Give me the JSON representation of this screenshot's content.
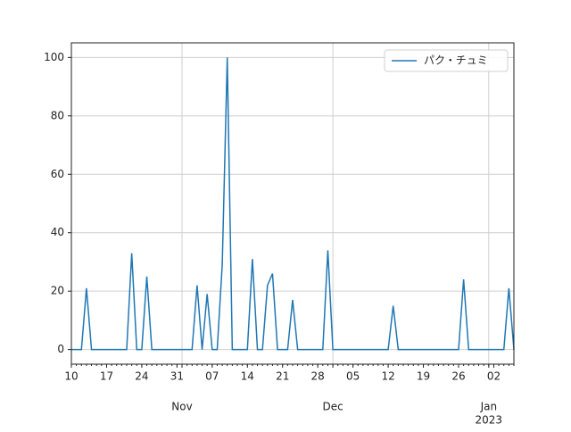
{
  "chart_data": {
    "type": "line",
    "x": [
      "10-10",
      "10-11",
      "10-12",
      "10-13",
      "10-14",
      "10-15",
      "10-16",
      "10-17",
      "10-18",
      "10-19",
      "10-20",
      "10-21",
      "10-22",
      "10-23",
      "10-24",
      "10-25",
      "10-26",
      "10-27",
      "10-28",
      "10-29",
      "10-30",
      "10-31",
      "11-01",
      "11-02",
      "11-03",
      "11-04",
      "11-05",
      "11-06",
      "11-07",
      "11-08",
      "11-09",
      "11-10",
      "11-11",
      "11-12",
      "11-13",
      "11-14",
      "11-15",
      "11-16",
      "11-17",
      "11-18",
      "11-19",
      "11-20",
      "11-21",
      "11-22",
      "11-23",
      "11-24",
      "11-25",
      "11-26",
      "11-27",
      "11-28",
      "11-29",
      "11-30",
      "12-01",
      "12-02",
      "12-03",
      "12-04",
      "12-05",
      "12-06",
      "12-07",
      "12-08",
      "12-09",
      "12-10",
      "12-11",
      "12-12",
      "12-13",
      "12-14",
      "12-15",
      "12-16",
      "12-17",
      "12-18",
      "12-19",
      "12-20",
      "12-21",
      "12-22",
      "12-23",
      "12-24",
      "12-25",
      "12-26",
      "12-27",
      "12-28",
      "12-29",
      "12-30",
      "12-31",
      "01-01",
      "01-02",
      "01-03",
      "01-04",
      "01-05",
      "01-06"
    ],
    "series": [
      {
        "name": "パク・チュミ",
        "color": "#1f77b4",
        "values": [
          0,
          0,
          0,
          21,
          0,
          0,
          0,
          0,
          0,
          0,
          0,
          0,
          33,
          0,
          0,
          25,
          0,
          0,
          0,
          0,
          0,
          0,
          0,
          0,
          0,
          22,
          0,
          19,
          0,
          0,
          29,
          100,
          0,
          0,
          0,
          0,
          31,
          0,
          0,
          22,
          26,
          0,
          0,
          0,
          17,
          0,
          0,
          0,
          0,
          0,
          0,
          34,
          0,
          0,
          0,
          0,
          0,
          0,
          0,
          0,
          0,
          0,
          0,
          0,
          15,
          0,
          0,
          0,
          0,
          0,
          0,
          0,
          0,
          0,
          0,
          0,
          0,
          0,
          24,
          0,
          0,
          0,
          0,
          0,
          0,
          0,
          0,
          21,
          0
        ]
      }
    ],
    "xlim": [
      "10-10",
      "01-06"
    ],
    "xticks": [
      {
        "value": "10-10",
        "label": "10"
      },
      {
        "value": "10-17",
        "label": "17"
      },
      {
        "value": "10-24",
        "label": "24"
      },
      {
        "value": "10-31",
        "label": "31"
      },
      {
        "value": "11-07",
        "label": "07"
      },
      {
        "value": "11-14",
        "label": "14"
      },
      {
        "value": "11-21",
        "label": "21"
      },
      {
        "value": "11-28",
        "label": "28"
      },
      {
        "value": "12-05",
        "label": "05"
      },
      {
        "value": "12-12",
        "label": "12"
      },
      {
        "value": "12-19",
        "label": "19"
      },
      {
        "value": "12-26",
        "label": "26"
      },
      {
        "value": "01-02",
        "label": "02"
      }
    ],
    "month_ticks": [
      {
        "value": "11-01",
        "label": "Nov"
      },
      {
        "value": "12-01",
        "label": "Dec"
      },
      {
        "value": "01-01",
        "label": "Jan",
        "year": "2023"
      }
    ],
    "ylim": [
      -5,
      105
    ],
    "yticks": [
      0,
      20,
      40,
      60,
      80,
      100
    ],
    "grid": true,
    "legend": "upper right"
  }
}
